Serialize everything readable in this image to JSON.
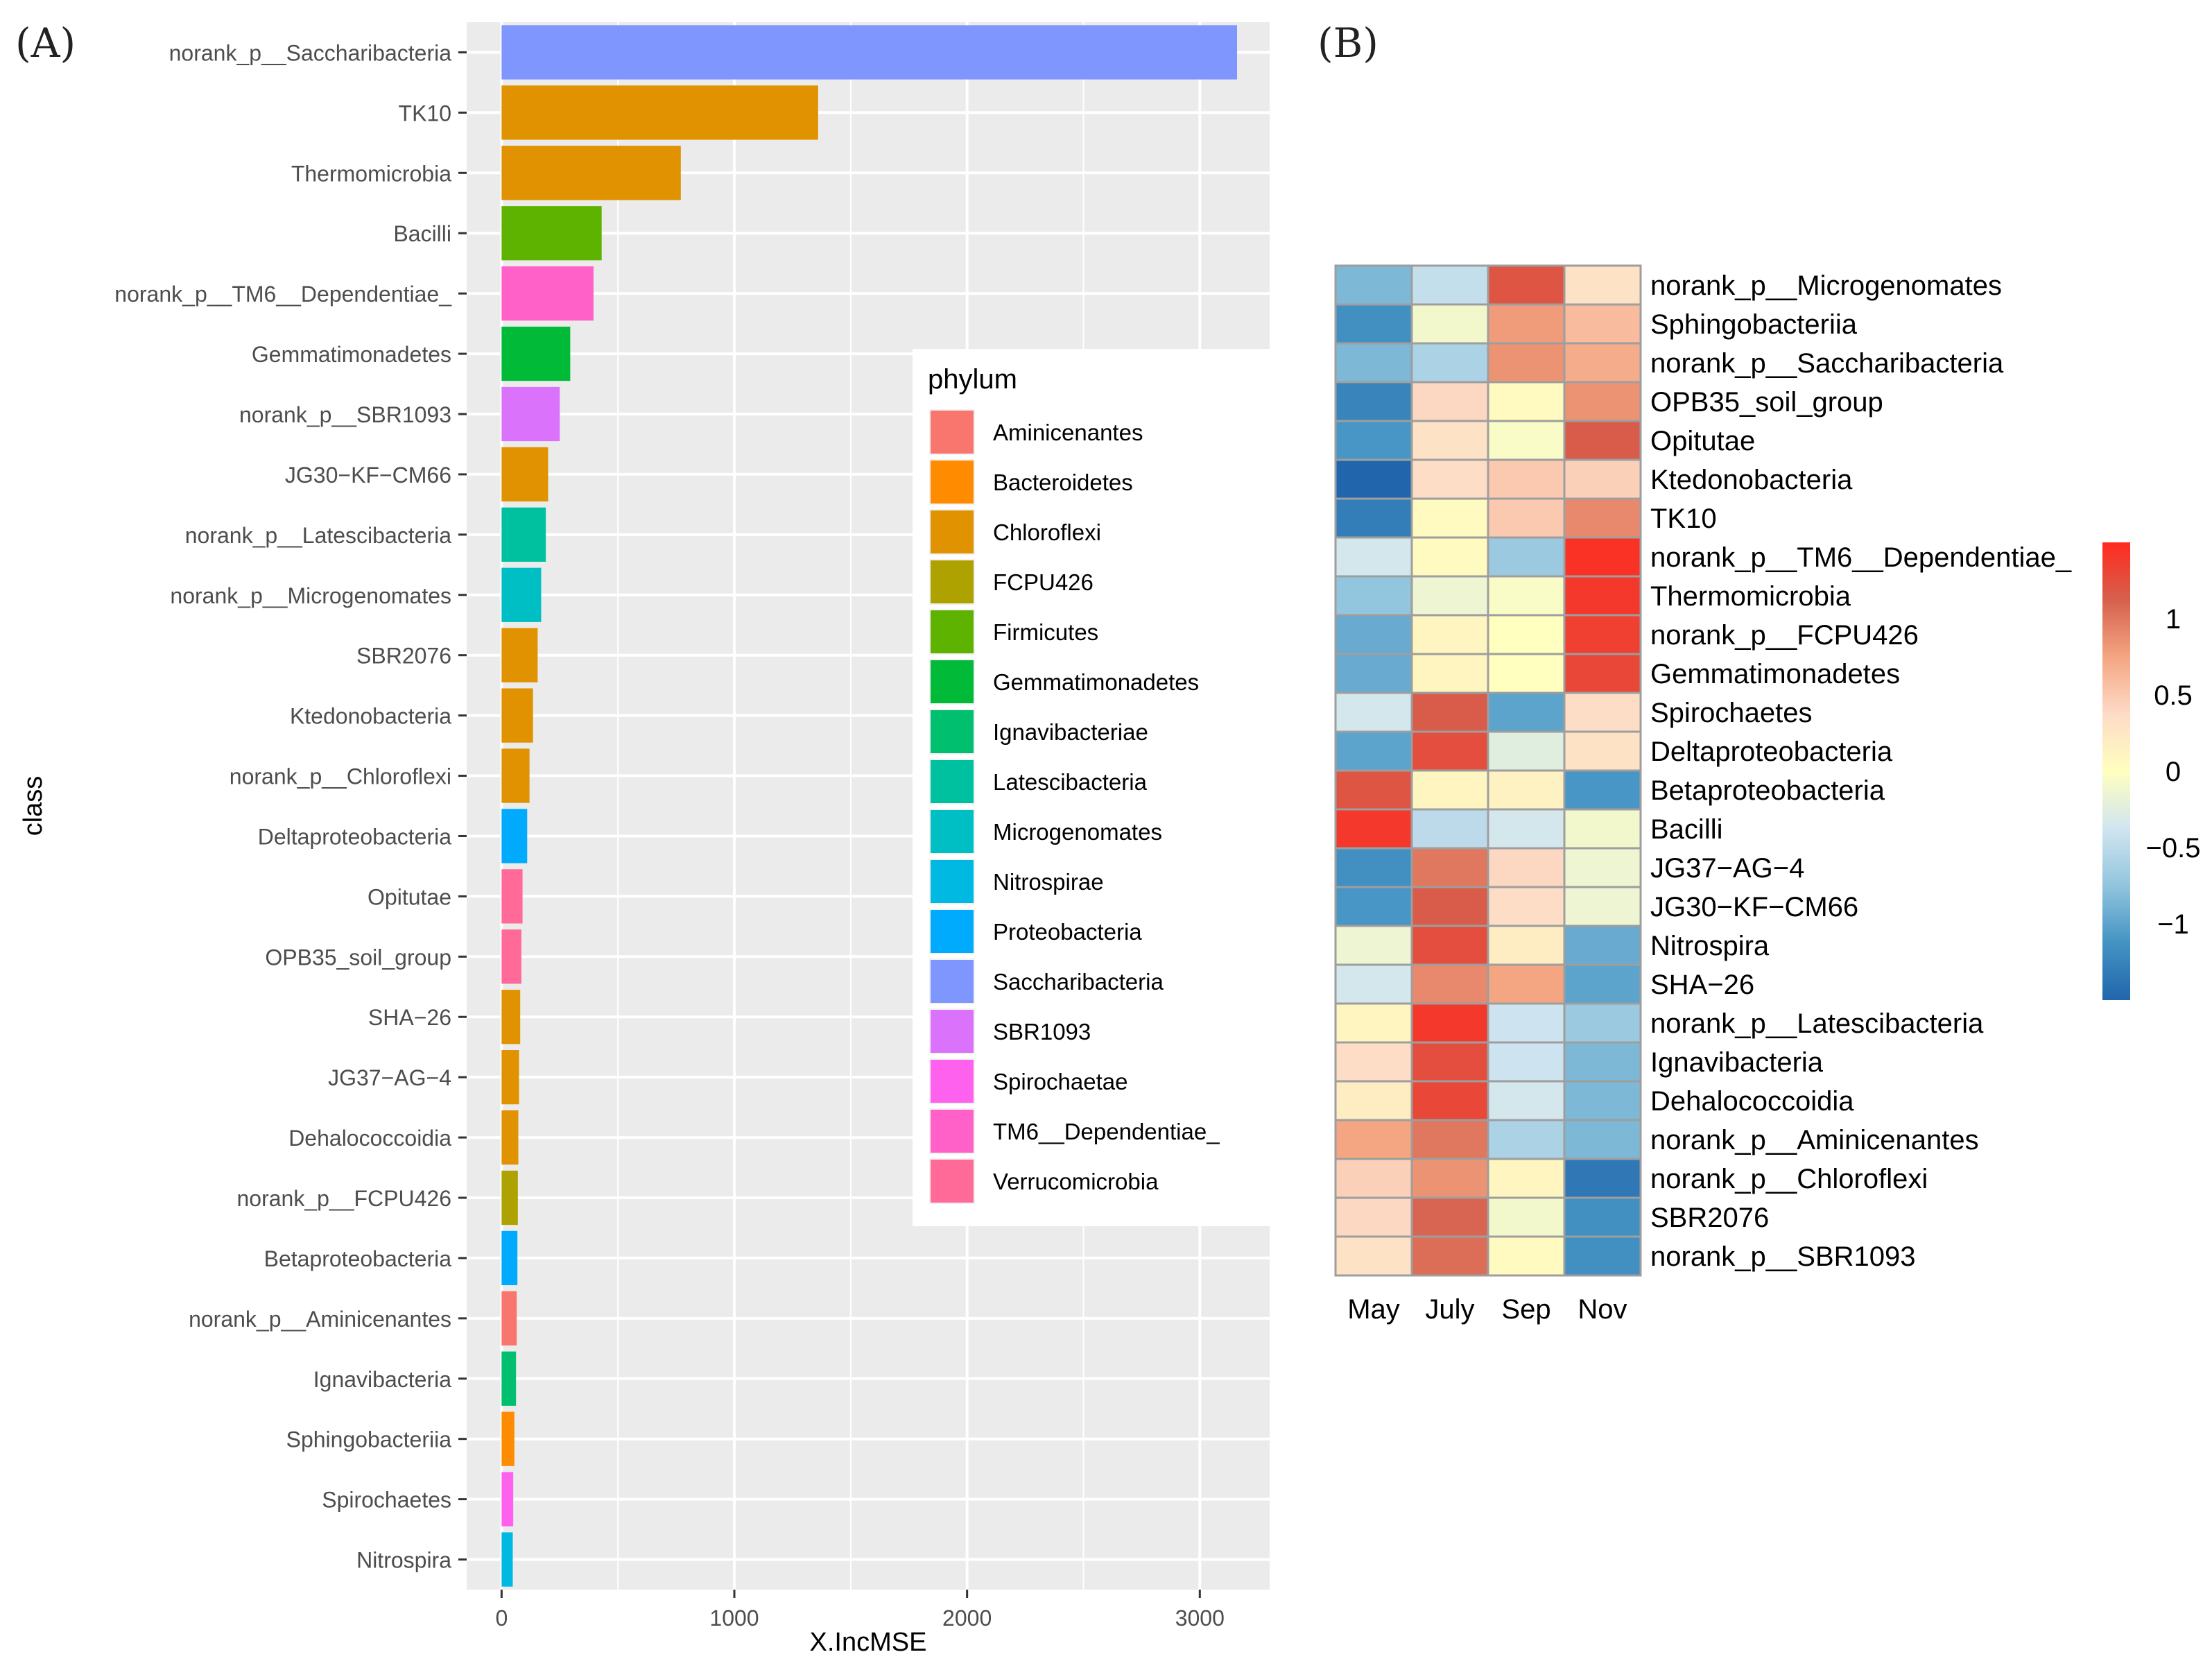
{
  "chart_data": [
    {
      "type": "bar",
      "orientation": "horizontal",
      "panel_label": "(A)",
      "xlabel": "X.IncMSE",
      "ylabel": "class",
      "xlim": [
        -150,
        3300
      ],
      "xticks": [
        0,
        1000,
        2000,
        3000
      ],
      "xtick_labels": [
        "0",
        "1000",
        "2000",
        "3000"
      ],
      "grid": true,
      "legend_title": "phylum",
      "legend_position": "right-inside",
      "legend": [
        {
          "name": "Aminicenantes",
          "color": "#F8766D"
        },
        {
          "name": "Bacteroidetes",
          "color": "#FF8C00"
        },
        {
          "name": "Chloroflexi",
          "color": "#E09200"
        },
        {
          "name": "FCPU426",
          "color": "#AEA200"
        },
        {
          "name": "Firmicutes",
          "color": "#5EB300"
        },
        {
          "name": "Gemmatimonadetes",
          "color": "#00BA38"
        },
        {
          "name": "Ignavibacteriae",
          "color": "#00BF6F"
        },
        {
          "name": "Latescibacteria",
          "color": "#00C19F"
        },
        {
          "name": "Microgenomates",
          "color": "#00BFC4"
        },
        {
          "name": "Nitrospirae",
          "color": "#00B9E3"
        },
        {
          "name": "Proteobacteria",
          "color": "#00ABFD"
        },
        {
          "name": "Saccharibacteria",
          "color": "#7F96FF"
        },
        {
          "name": "SBR1093",
          "color": "#DB72FB"
        },
        {
          "name": "Spirochaetae",
          "color": "#FF61EF"
        },
        {
          "name": "TM6__Dependentiae_",
          "color": "#FF61C9"
        },
        {
          "name": "Verrucomicrobia",
          "color": "#FF6A98"
        }
      ],
      "categories": [
        "norank_p__Saccharibacteria",
        "TK10",
        "Thermomicrobia",
        "Bacilli",
        "norank_p__TM6__Dependentiae_",
        "Gemmatimonadetes",
        "norank_p__SBR1093",
        "JG30−KF−CM66",
        "norank_p__Latescibacteria",
        "norank_p__Microgenomates",
        "SBR2076",
        "Ktedonobacteria",
        "norank_p__Chloroflexi",
        "Deltaproteobacteria",
        "Opitutae",
        "OPB35_soil_group",
        "SHA−26",
        "JG37−AG−4",
        "Dehalococcoidia",
        "norank_p__FCPU426",
        "Betaproteobacteria",
        "norank_p__Aminicenantes",
        "Ignavibacteria",
        "Sphingobacteriia",
        "Spirochaetes",
        "Nitrospira"
      ],
      "values": [
        3160,
        1360,
        770,
        430,
        395,
        295,
        250,
        200,
        190,
        170,
        155,
        135,
        120,
        110,
        90,
        85,
        80,
        75,
        72,
        70,
        68,
        65,
        62,
        55,
        50,
        48
      ],
      "bar_phylum": [
        "Saccharibacteria",
        "Chloroflexi",
        "Chloroflexi",
        "Firmicutes",
        "TM6__Dependentiae_",
        "Gemmatimonadetes",
        "SBR1093",
        "Chloroflexi",
        "Latescibacteria",
        "Microgenomates",
        "Chloroflexi",
        "Chloroflexi",
        "Chloroflexi",
        "Proteobacteria",
        "Verrucomicrobia",
        "Verrucomicrobia",
        "Chloroflexi",
        "Chloroflexi",
        "Chloroflexi",
        "FCPU426",
        "Proteobacteria",
        "Aminicenantes",
        "Ignavibacteriae",
        "Bacteroidetes",
        "Spirochaetae",
        "Nitrospirae"
      ]
    },
    {
      "type": "heatmap",
      "panel_label": "(B)",
      "columns": [
        "May",
        "July",
        "Sep",
        "Nov"
      ],
      "rows": [
        "norank_p__Microgenomates",
        "Sphingobacteriia",
        "norank_p__Saccharibacteria",
        "OPB35_soil_group",
        "Opitutae",
        "Ktedonobacteria",
        "TK10",
        "norank_p__TM6__Dependentiae_",
        "Thermomicrobia",
        "norank_p__FCPU426",
        "Gemmatimonadetes",
        "Spirochaetes",
        "Deltaproteobacteria",
        "Betaproteobacteria",
        "Bacilli",
        "JG37−AG−4",
        "JG30−KF−CM66",
        "Nitrospira",
        "SHA−26",
        "norank_p__Latescibacteria",
        "Ignavibacteria",
        "Dehalococcoidia",
        "norank_p__Aminicenantes",
        "norank_p__Chloroflexi",
        "SBR2076",
        "norank_p__SBR1093"
      ],
      "values": [
        [
          -0.85,
          -0.45,
          1.2,
          0.3
        ],
        [
          -1.15,
          -0.1,
          0.8,
          0.6
        ],
        [
          -0.85,
          -0.6,
          0.85,
          0.7
        ],
        [
          -1.25,
          0.4,
          0.05,
          0.85
        ],
        [
          -1.1,
          0.3,
          -0.05,
          1.15
        ],
        [
          -1.55,
          0.35,
          0.5,
          0.45
        ],
        [
          -1.3,
          0.05,
          0.5,
          0.9
        ],
        [
          -0.35,
          0.05,
          -0.7,
          1.45
        ],
        [
          -0.75,
          -0.15,
          -0.05,
          1.4
        ],
        [
          -0.95,
          0.1,
          0.0,
          1.35
        ],
        [
          -0.95,
          0.1,
          0.0,
          1.3
        ],
        [
          -0.35,
          1.15,
          -1.0,
          0.35
        ],
        [
          -1.0,
          1.25,
          -0.25,
          0.3
        ],
        [
          1.2,
          0.1,
          0.15,
          -1.1
        ],
        [
          1.4,
          -0.5,
          -0.35,
          -0.1
        ],
        [
          -1.15,
          1.0,
          0.4,
          -0.15
        ],
        [
          -1.1,
          1.15,
          0.35,
          -0.15
        ],
        [
          -0.15,
          1.25,
          0.2,
          -0.95
        ],
        [
          -0.35,
          0.9,
          0.75,
          -1.0
        ],
        [
          0.1,
          1.4,
          -0.4,
          -0.7
        ],
        [
          0.35,
          1.25,
          -0.4,
          -0.85
        ],
        [
          0.2,
          1.3,
          -0.35,
          -0.85
        ],
        [
          0.75,
          1.0,
          -0.6,
          -0.85
        ],
        [
          0.45,
          0.85,
          0.1,
          -1.35
        ],
        [
          0.4,
          1.1,
          -0.1,
          -1.15
        ],
        [
          0.3,
          1.05,
          0.05,
          -1.15
        ]
      ],
      "scale_ticks": [
        1,
        0.5,
        0,
        -0.5,
        -1
      ],
      "scale_tick_labels": [
        "1",
        "0.5",
        "0",
        "−0.5",
        "−1"
      ],
      "scale_range": [
        -1.5,
        1.5
      ],
      "scale_colors": [
        "#2166AC",
        "#4393C3",
        "#92C5DE",
        "#D1E5F0",
        "#FFFFBF",
        "#FDDBC7",
        "#F4A582",
        "#D6604D",
        "#FF2A1F"
      ],
      "legend_position": "right"
    }
  ]
}
